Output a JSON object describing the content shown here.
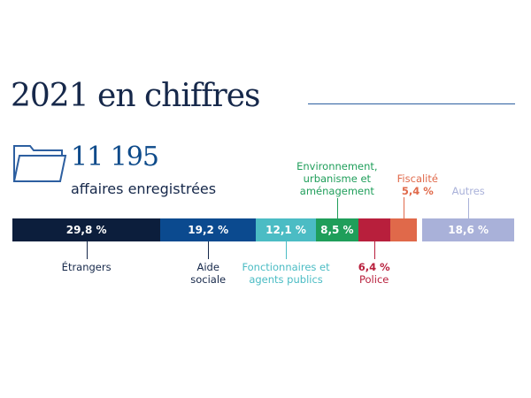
{
  "header": {
    "title": "2021 en chiffres"
  },
  "summary": {
    "count": "11 195",
    "label": "affaires enregistrées",
    "icon": "folder-icon"
  },
  "chart_data": {
    "type": "bar",
    "orientation": "horizontal-stacked",
    "unit": "%",
    "categories": [
      "Étrangers",
      "Aide sociale",
      "Fonctionnaires et agents publics",
      "Environnement, urbanisme et aménagement",
      "Police",
      "Fiscalité",
      "Autres"
    ],
    "values": [
      29.8,
      19.2,
      12.1,
      8.5,
      6.4,
      5.4,
      18.6
    ],
    "value_labels": [
      "29,8 %",
      "19,2 %",
      "12,1 %",
      "8,5 %",
      "6,4 %",
      "5,4 %",
      "18,6 %"
    ],
    "colors": [
      "#0c1e3c",
      "#0b4a8f",
      "#4bbcc4",
      "#1f9e5a",
      "#b81f3c",
      "#e0694a",
      "#a9b1d9"
    ],
    "label_colors": [
      "#16284a",
      "#16284a",
      "#4bbcc4",
      "#1f9e5a",
      "#b81f3c",
      "#e0694a",
      "#a9b1d9"
    ]
  }
}
